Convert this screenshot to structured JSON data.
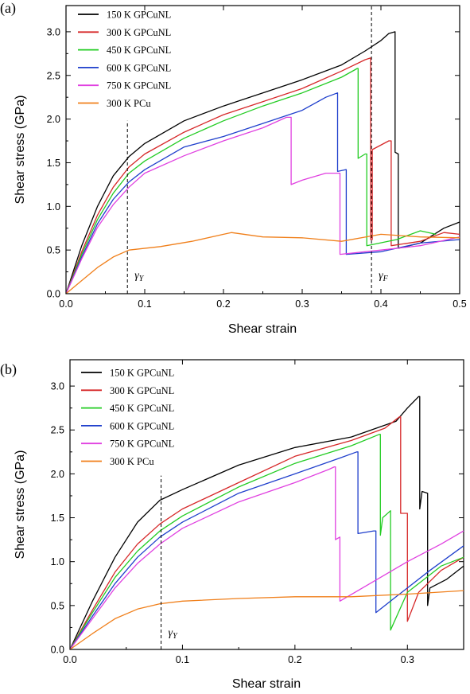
{
  "chart_data": [
    {
      "panel": "(a)",
      "type": "line",
      "xlabel": "Shear strain",
      "ylabel": "Shear stress (GPa)",
      "xlim": [
        0,
        0.5
      ],
      "ylim": [
        0,
        3.3
      ],
      "xticks": [
        0,
        0.1,
        0.2,
        0.3,
        0.4,
        0.5
      ],
      "xtick_labels": [
        "0.0",
        "0.1",
        "0.2",
        "0.3",
        "0.4",
        "0.5"
      ],
      "yticks": [
        0,
        0.5,
        1.0,
        1.5,
        2.0,
        2.5,
        3.0
      ],
      "ytick_labels": [
        "0.0",
        "0.5",
        "1.0",
        "1.5",
        "2.0",
        "2.5",
        "3.0"
      ],
      "legend_position": "top-left",
      "markers": [
        {
          "x": 0.078,
          "y_from": 0,
          "y_to": 1.98,
          "label": "γ",
          "sub": "Y",
          "label_y": 0.22
        },
        {
          "x": 0.388,
          "y_from": 0,
          "y_to": 3.3,
          "label": "γ",
          "sub": "F",
          "label_y": 0.22
        }
      ],
      "series": [
        {
          "name": "150 K GPCuNL",
          "color": "#000000",
          "points": [
            [
              0,
              0
            ],
            [
              0.02,
              0.55
            ],
            [
              0.04,
              1.0
            ],
            [
              0.06,
              1.35
            ],
            [
              0.08,
              1.57
            ],
            [
              0.1,
              1.72
            ],
            [
              0.15,
              1.98
            ],
            [
              0.2,
              2.15
            ],
            [
              0.25,
              2.3
            ],
            [
              0.3,
              2.45
            ],
            [
              0.35,
              2.62
            ],
            [
              0.38,
              2.78
            ],
            [
              0.4,
              2.9
            ],
            [
              0.41,
              2.98
            ],
            [
              0.418,
              3.0
            ],
            [
              0.418,
              1.62
            ],
            [
              0.422,
              1.6
            ],
            [
              0.422,
              0.52
            ],
            [
              0.45,
              0.58
            ],
            [
              0.48,
              0.75
            ],
            [
              0.5,
              0.82
            ]
          ]
        },
        {
          "name": "300 K GPCuNL",
          "color": "#d62728",
          "points": [
            [
              0,
              0
            ],
            [
              0.02,
              0.48
            ],
            [
              0.04,
              0.9
            ],
            [
              0.06,
              1.22
            ],
            [
              0.08,
              1.45
            ],
            [
              0.1,
              1.6
            ],
            [
              0.15,
              1.85
            ],
            [
              0.2,
              2.05
            ],
            [
              0.25,
              2.2
            ],
            [
              0.3,
              2.35
            ],
            [
              0.35,
              2.55
            ],
            [
              0.38,
              2.68
            ],
            [
              0.387,
              2.7
            ],
            [
              0.387,
              0.62
            ],
            [
              0.389,
              0.62
            ],
            [
              0.389,
              1.65
            ],
            [
              0.41,
              1.75
            ],
            [
              0.413,
              1.75
            ],
            [
              0.413,
              0.55
            ],
            [
              0.45,
              0.6
            ],
            [
              0.48,
              0.7
            ],
            [
              0.5,
              0.68
            ]
          ]
        },
        {
          "name": "450 K GPCuNL",
          "color": "#22cc22",
          "points": [
            [
              0,
              0
            ],
            [
              0.02,
              0.45
            ],
            [
              0.04,
              0.85
            ],
            [
              0.06,
              1.15
            ],
            [
              0.08,
              1.38
            ],
            [
              0.1,
              1.52
            ],
            [
              0.15,
              1.78
            ],
            [
              0.2,
              1.98
            ],
            [
              0.25,
              2.15
            ],
            [
              0.3,
              2.3
            ],
            [
              0.35,
              2.48
            ],
            [
              0.37,
              2.58
            ],
            [
              0.371,
              2.58
            ],
            [
              0.371,
              1.55
            ],
            [
              0.38,
              1.6
            ],
            [
              0.382,
              1.6
            ],
            [
              0.382,
              0.55
            ],
            [
              0.42,
              0.62
            ],
            [
              0.45,
              0.72
            ],
            [
              0.47,
              0.68
            ]
          ]
        },
        {
          "name": "600 K GPCuNL",
          "color": "#1f3fcc",
          "points": [
            [
              0,
              0
            ],
            [
              0.02,
              0.42
            ],
            [
              0.04,
              0.8
            ],
            [
              0.06,
              1.08
            ],
            [
              0.08,
              1.28
            ],
            [
              0.1,
              1.42
            ],
            [
              0.15,
              1.68
            ],
            [
              0.2,
              1.8
            ],
            [
              0.25,
              1.95
            ],
            [
              0.3,
              2.1
            ],
            [
              0.33,
              2.25
            ],
            [
              0.345,
              2.3
            ],
            [
              0.345,
              1.4
            ],
            [
              0.355,
              1.42
            ],
            [
              0.356,
              1.42
            ],
            [
              0.356,
              0.45
            ],
            [
              0.4,
              0.48
            ],
            [
              0.45,
              0.58
            ],
            [
              0.5,
              0.62
            ]
          ]
        },
        {
          "name": "750 K GPCuNL",
          "color": "#e040e0",
          "points": [
            [
              0,
              0
            ],
            [
              0.02,
              0.4
            ],
            [
              0.04,
              0.76
            ],
            [
              0.06,
              1.02
            ],
            [
              0.08,
              1.22
            ],
            [
              0.1,
              1.38
            ],
            [
              0.15,
              1.58
            ],
            [
              0.2,
              1.75
            ],
            [
              0.25,
              1.9
            ],
            [
              0.28,
              2.02
            ],
            [
              0.286,
              2.02
            ],
            [
              0.286,
              1.25
            ],
            [
              0.3,
              1.3
            ],
            [
              0.33,
              1.38
            ],
            [
              0.348,
              1.38
            ],
            [
              0.348,
              0.45
            ],
            [
              0.4,
              0.5
            ],
            [
              0.45,
              0.55
            ],
            [
              0.5,
              0.65
            ]
          ]
        },
        {
          "name": "300 K PCu",
          "color": "#f07f1a",
          "points": [
            [
              0,
              0
            ],
            [
              0.02,
              0.15
            ],
            [
              0.04,
              0.3
            ],
            [
              0.06,
              0.42
            ],
            [
              0.08,
              0.5
            ],
            [
              0.12,
              0.54
            ],
            [
              0.16,
              0.6
            ],
            [
              0.2,
              0.68
            ],
            [
              0.21,
              0.7
            ],
            [
              0.25,
              0.65
            ],
            [
              0.3,
              0.64
            ],
            [
              0.35,
              0.6
            ],
            [
              0.4,
              0.68
            ],
            [
              0.45,
              0.65
            ],
            [
              0.5,
              0.64
            ]
          ]
        }
      ]
    },
    {
      "panel": "(b)",
      "type": "line",
      "xlabel": "Shear strain",
      "ylabel": "Shear stress (GPa)",
      "xlim": [
        0,
        0.35
      ],
      "ylim": [
        0,
        3.3
      ],
      "xticks": [
        0,
        0.1,
        0.2,
        0.3
      ],
      "xtick_labels": [
        "0.0",
        "0.1",
        "0.2",
        "0.3"
      ],
      "yticks": [
        0,
        0.5,
        1.0,
        1.5,
        2.0,
        2.5,
        3.0
      ],
      "ytick_labels": [
        "0.0",
        "0.5",
        "1.0",
        "1.5",
        "2.0",
        "2.5",
        "3.0"
      ],
      "legend_position": "top-left",
      "markers": [
        {
          "x": 0.081,
          "y_from": 0,
          "y_to": 1.98,
          "label": "γ",
          "sub": "Y",
          "label_y": 0.2
        }
      ],
      "series": [
        {
          "name": "150 K GPCuNL",
          "color": "#000000",
          "points": [
            [
              0,
              0
            ],
            [
              0.02,
              0.55
            ],
            [
              0.04,
              1.05
            ],
            [
              0.06,
              1.45
            ],
            [
              0.08,
              1.7
            ],
            [
              0.1,
              1.82
            ],
            [
              0.15,
              2.1
            ],
            [
              0.2,
              2.3
            ],
            [
              0.25,
              2.42
            ],
            [
              0.29,
              2.6
            ],
            [
              0.3,
              2.75
            ],
            [
              0.31,
              2.88
            ],
            [
              0.311,
              2.88
            ],
            [
              0.311,
              1.6
            ],
            [
              0.313,
              1.8
            ],
            [
              0.318,
              1.78
            ],
            [
              0.318,
              0.5
            ],
            [
              0.32,
              0.7
            ],
            [
              0.335,
              0.8
            ],
            [
              0.35,
              0.95
            ]
          ]
        },
        {
          "name": "300 K GPCuNL",
          "color": "#d62728",
          "points": [
            [
              0,
              0
            ],
            [
              0.02,
              0.45
            ],
            [
              0.04,
              0.88
            ],
            [
              0.06,
              1.2
            ],
            [
              0.08,
              1.43
            ],
            [
              0.1,
              1.6
            ],
            [
              0.15,
              1.9
            ],
            [
              0.2,
              2.2
            ],
            [
              0.25,
              2.38
            ],
            [
              0.28,
              2.52
            ],
            [
              0.293,
              2.65
            ],
            [
              0.294,
              2.65
            ],
            [
              0.294,
              1.55
            ],
            [
              0.3,
              1.55
            ],
            [
              0.3,
              0.32
            ],
            [
              0.31,
              0.65
            ],
            [
              0.33,
              0.9
            ],
            [
              0.35,
              1.05
            ]
          ]
        },
        {
          "name": "450 K GPCuNL",
          "color": "#22cc22",
          "points": [
            [
              0,
              0
            ],
            [
              0.02,
              0.42
            ],
            [
              0.04,
              0.82
            ],
            [
              0.06,
              1.12
            ],
            [
              0.08,
              1.35
            ],
            [
              0.1,
              1.52
            ],
            [
              0.15,
              1.85
            ],
            [
              0.2,
              2.12
            ],
            [
              0.25,
              2.32
            ],
            [
              0.275,
              2.45
            ],
            [
              0.276,
              2.45
            ],
            [
              0.276,
              1.3
            ],
            [
              0.278,
              1.5
            ],
            [
              0.285,
              1.58
            ],
            [
              0.285,
              0.22
            ],
            [
              0.3,
              0.65
            ],
            [
              0.33,
              0.95
            ],
            [
              0.35,
              1.05
            ]
          ]
        },
        {
          "name": "600 K GPCuNL",
          "color": "#1f3fcc",
          "points": [
            [
              0,
              0
            ],
            [
              0.02,
              0.38
            ],
            [
              0.04,
              0.75
            ],
            [
              0.06,
              1.05
            ],
            [
              0.08,
              1.28
            ],
            [
              0.1,
              1.45
            ],
            [
              0.15,
              1.78
            ],
            [
              0.2,
              2.0
            ],
            [
              0.24,
              2.18
            ],
            [
              0.255,
              2.25
            ],
            [
              0.256,
              2.25
            ],
            [
              0.256,
              1.32
            ],
            [
              0.27,
              1.35
            ],
            [
              0.272,
              1.35
            ],
            [
              0.272,
              0.42
            ],
            [
              0.29,
              0.6
            ],
            [
              0.32,
              0.9
            ],
            [
              0.35,
              1.18
            ]
          ]
        },
        {
          "name": "750 K GPCuNL",
          "color": "#e040e0",
          "points": [
            [
              0,
              0
            ],
            [
              0.02,
              0.35
            ],
            [
              0.04,
              0.7
            ],
            [
              0.06,
              0.98
            ],
            [
              0.08,
              1.2
            ],
            [
              0.1,
              1.38
            ],
            [
              0.15,
              1.68
            ],
            [
              0.2,
              1.9
            ],
            [
              0.23,
              2.05
            ],
            [
              0.235,
              2.08
            ],
            [
              0.236,
              2.08
            ],
            [
              0.236,
              1.25
            ],
            [
              0.24,
              1.28
            ],
            [
              0.24,
              0.55
            ],
            [
              0.26,
              0.7
            ],
            [
              0.3,
              1.0
            ],
            [
              0.33,
              1.2
            ],
            [
              0.35,
              1.35
            ]
          ]
        },
        {
          "name": "300 K PCu",
          "color": "#f07f1a",
          "points": [
            [
              0,
              0
            ],
            [
              0.02,
              0.18
            ],
            [
              0.04,
              0.35
            ],
            [
              0.06,
              0.46
            ],
            [
              0.08,
              0.52
            ],
            [
              0.1,
              0.55
            ],
            [
              0.15,
              0.58
            ],
            [
              0.2,
              0.6
            ],
            [
              0.25,
              0.6
            ],
            [
              0.3,
              0.63
            ],
            [
              0.35,
              0.67
            ]
          ]
        }
      ]
    }
  ]
}
